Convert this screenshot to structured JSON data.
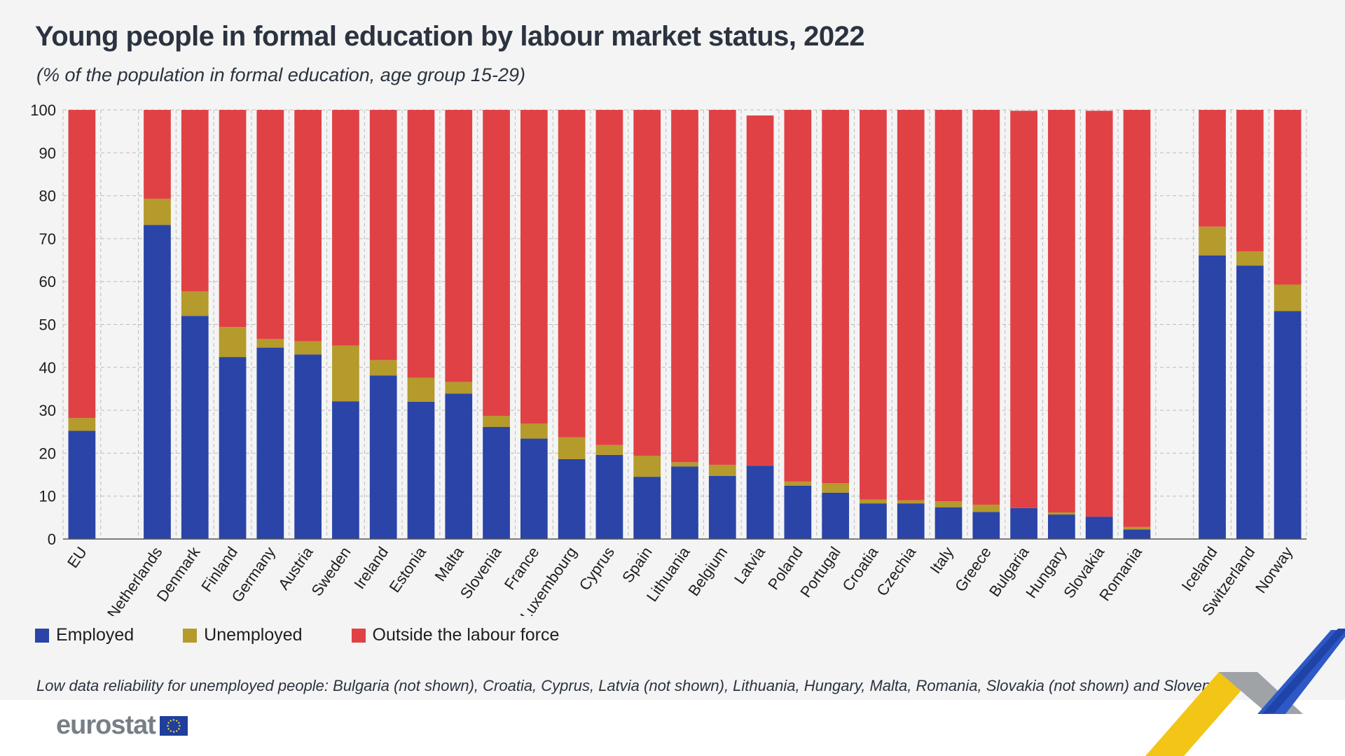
{
  "title": "Young people in formal education by labour market status, 2022",
  "subtitle": "(% of the population in formal education, age group 15-29)",
  "legend": {
    "employed": "Employed",
    "unemployed": "Unemployed",
    "outside": "Outside the labour force"
  },
  "footnote": "Low data reliability for unemployed people: Bulgaria (not shown), Croatia, Cyprus, Latvia (not shown), Lithuania, Hungary, Malta, Romania, Slovakia (not shown) and Slovenia",
  "logo": {
    "text": "eurostat"
  },
  "colors": {
    "employed": "#2a44a8",
    "unemployed": "#b59a2c",
    "outside": "#e04145",
    "grid": "#bcbcbc",
    "axis": "#555555"
  },
  "icons": {
    "flag": "eu-flag-icon",
    "decoration": "chevron-decoration-icon"
  },
  "chart_data": {
    "type": "bar",
    "stacked": true,
    "ylim": [
      0,
      100
    ],
    "yticks": [
      0,
      10,
      20,
      30,
      40,
      50,
      60,
      70,
      80,
      90,
      100
    ],
    "grid": true,
    "legend_position": "bottom-left",
    "categories": [
      "EU",
      "Netherlands",
      "Denmark",
      "Finland",
      "Germany",
      "Austria",
      "Sweden",
      "Ireland",
      "Estonia",
      "Malta",
      "Slovenia",
      "France",
      "Luxembourg",
      "Cyprus",
      "Spain",
      "Lithuania",
      "Belgium",
      "Latvia",
      "Poland",
      "Portugal",
      "Croatia",
      "Czechia",
      "Italy",
      "Greece",
      "Bulgaria",
      "Hungary",
      "Slovakia",
      "Romania",
      "Iceland",
      "Switzerland",
      "Norway"
    ],
    "groups": [
      [
        "EU"
      ],
      [
        "Netherlands",
        "Denmark",
        "Finland",
        "Germany",
        "Austria",
        "Sweden",
        "Ireland",
        "Estonia",
        "Malta",
        "Slovenia",
        "France",
        "Luxembourg",
        "Cyprus",
        "Spain",
        "Lithuania",
        "Belgium",
        "Latvia",
        "Poland",
        "Portugal",
        "Croatia",
        "Czechia",
        "Italy",
        "Greece",
        "Bulgaria",
        "Hungary",
        "Slovakia",
        "Romania"
      ],
      [
        "Iceland",
        "Switzerland",
        "Norway"
      ]
    ],
    "series": [
      {
        "name": "Employed",
        "values": [
          25.2,
          73.2,
          52.0,
          42.4,
          44.6,
          43.0,
          32.1,
          38.1,
          32.0,
          33.9,
          26.1,
          23.4,
          18.6,
          19.6,
          14.5,
          16.9,
          14.7,
          17.1,
          12.4,
          10.8,
          8.3,
          8.3,
          7.4,
          6.3,
          7.2,
          5.7,
          5.2,
          2.2,
          66.1,
          63.7,
          53.1
        ]
      },
      {
        "name": "Unemployed",
        "values": [
          3.0,
          6.1,
          5.7,
          7.0,
          2.0,
          3.1,
          13.0,
          3.6,
          5.6,
          2.7,
          2.6,
          3.5,
          5.1,
          2.3,
          4.9,
          1.0,
          2.6,
          0.0,
          1.0,
          2.2,
          0.9,
          0.7,
          1.4,
          1.7,
          0.0,
          0.5,
          0.0,
          0.6,
          6.7,
          3.3,
          6.2
        ]
      },
      {
        "name": "Outside the labour force",
        "values": [
          71.8,
          20.7,
          42.3,
          50.6,
          53.4,
          53.9,
          54.9,
          58.3,
          62.4,
          63.4,
          71.3,
          73.1,
          76.3,
          78.1,
          80.6,
          82.1,
          82.7,
          81.6,
          86.6,
          87.0,
          90.8,
          91.0,
          91.2,
          92.0,
          92.6,
          93.8,
          94.6,
          97.2,
          27.2,
          33.0,
          40.7
        ]
      }
    ]
  }
}
